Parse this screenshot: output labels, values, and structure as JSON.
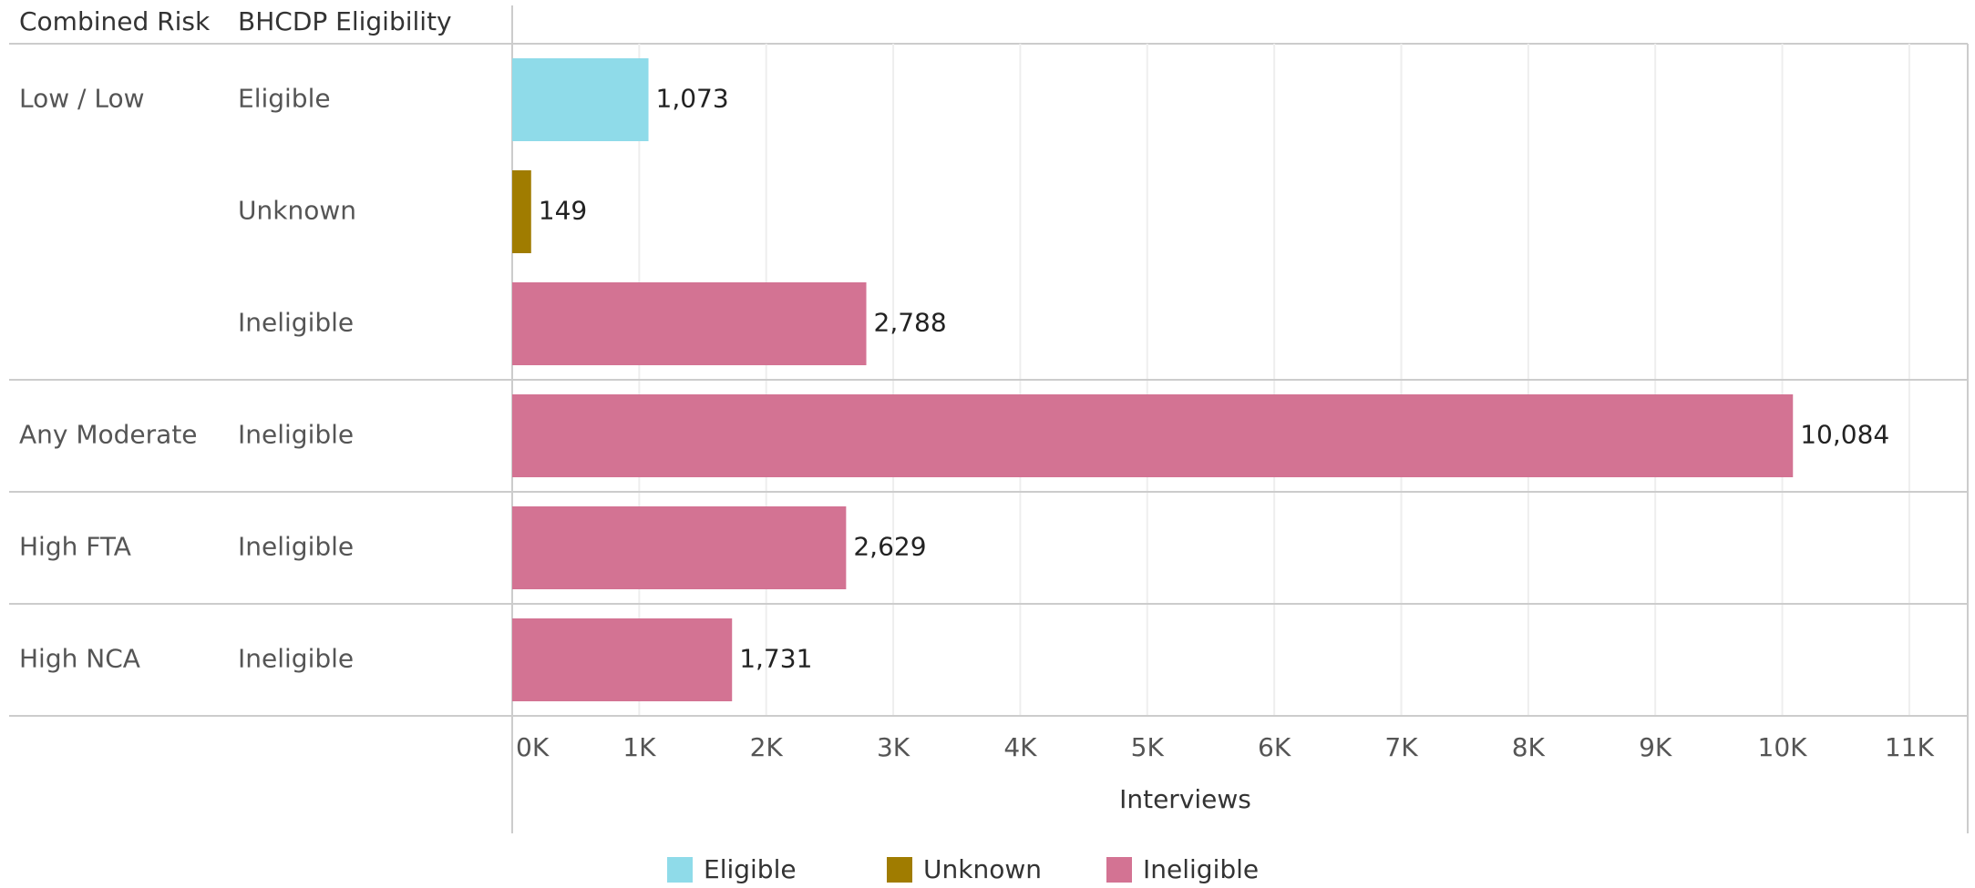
{
  "chart_data": {
    "type": "bar",
    "orientation": "horizontal",
    "row_headers": [
      "Combined Risk",
      "BHCDP Eligibility"
    ],
    "group_labels": [
      "Low / Low",
      null,
      null,
      "Any Moderate",
      "High FTA",
      "High NCA"
    ],
    "categories": [
      "Eligible",
      "Unknown",
      "Ineligible",
      "Ineligible",
      "Ineligible",
      "Ineligible"
    ],
    "values": [
      1073,
      149,
      2788,
      10084,
      2629,
      1731
    ],
    "value_labels": [
      "1,073",
      "149",
      "2,788",
      "10,084",
      "2,629",
      "1,731"
    ],
    "legend": [
      {
        "name": "Eligible",
        "color": "#8fdbe9"
      },
      {
        "name": "Unknown",
        "color": "#a07c00"
      },
      {
        "name": "Ineligible",
        "color": "#d37393"
      }
    ],
    "xlabel": "Interviews",
    "xlim": [
      0,
      11460
    ],
    "xticks": [
      {
        "value": 0,
        "label": "0K"
      },
      {
        "value": 1000,
        "label": "1K"
      },
      {
        "value": 2000,
        "label": "2K"
      },
      {
        "value": 3000,
        "label": "3K"
      },
      {
        "value": 4000,
        "label": "4K"
      },
      {
        "value": 5000,
        "label": "5K"
      },
      {
        "value": 6000,
        "label": "6K"
      },
      {
        "value": 7000,
        "label": "7K"
      },
      {
        "value": 8000,
        "label": "8K"
      },
      {
        "value": 9000,
        "label": "9K"
      },
      {
        "value": 10000,
        "label": "10K"
      },
      {
        "value": 11000,
        "label": "11K"
      }
    ],
    "grid": true
  }
}
